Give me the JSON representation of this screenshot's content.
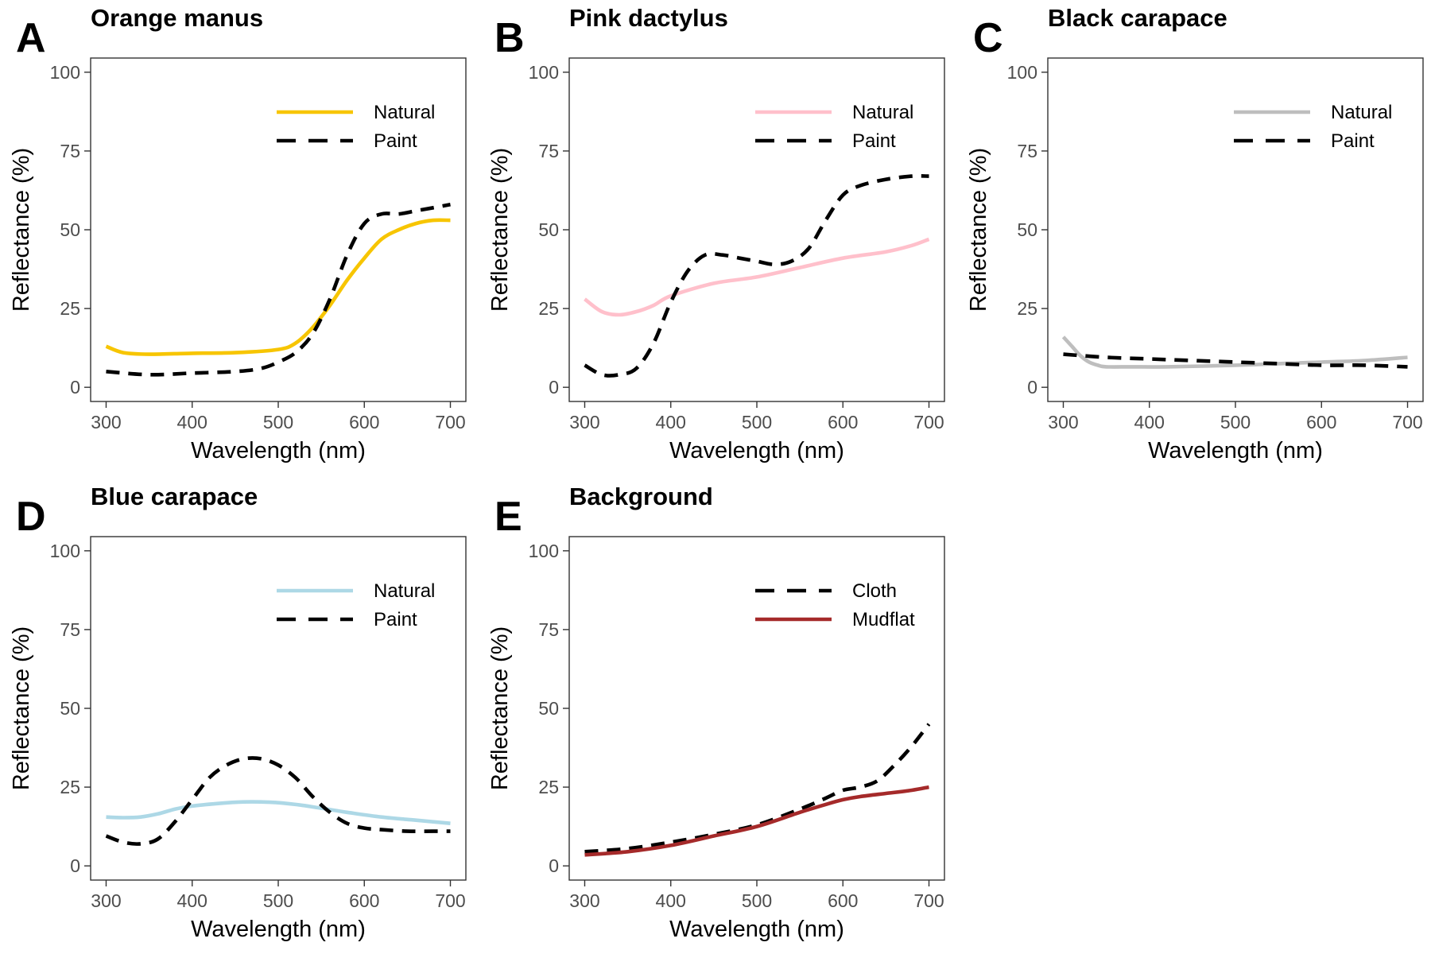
{
  "chart_data": [
    {
      "type": "line",
      "panel": "A",
      "title": "Orange manus",
      "xlabel": "Wavelength (nm)",
      "ylabel": "Reflectance (%)",
      "xlim": [
        300,
        700
      ],
      "ylim": [
        0,
        100
      ],
      "xticks": [
        300,
        400,
        500,
        600,
        700
      ],
      "yticks": [
        0,
        25,
        50,
        75,
        100
      ],
      "legend": "top-right",
      "grid": false,
      "series": [
        {
          "name": "Natural",
          "color": "#f7c500",
          "dash": "solid",
          "x": [
            300,
            320,
            350,
            400,
            450,
            500,
            520,
            540,
            560,
            580,
            600,
            620,
            640,
            660,
            680,
            700
          ],
          "y": [
            13,
            11,
            10.5,
            10.8,
            11,
            12,
            14,
            19,
            26,
            34,
            41,
            47,
            50,
            52,
            53,
            53
          ]
        },
        {
          "name": "Paint",
          "color": "#000000",
          "dash": "dashed",
          "x": [
            300,
            350,
            400,
            450,
            480,
            500,
            520,
            540,
            560,
            580,
            600,
            620,
            640,
            660,
            680,
            700
          ],
          "y": [
            5,
            4,
            4.5,
            5,
            6,
            8,
            11,
            17,
            28,
            42,
            52,
            55,
            55,
            56,
            57,
            58
          ]
        }
      ]
    },
    {
      "type": "line",
      "panel": "B",
      "title": "Pink dactylus",
      "xlabel": "Wavelength (nm)",
      "ylabel": "Reflectance (%)",
      "xlim": [
        300,
        700
      ],
      "ylim": [
        0,
        100
      ],
      "xticks": [
        300,
        400,
        500,
        600,
        700
      ],
      "yticks": [
        0,
        25,
        50,
        75,
        100
      ],
      "legend": "top-right",
      "grid": false,
      "series": [
        {
          "name": "Natural",
          "color": "#ffc0cb",
          "dash": "solid",
          "x": [
            300,
            320,
            340,
            360,
            380,
            400,
            450,
            500,
            550,
            600,
            650,
            680,
            700
          ],
          "y": [
            28,
            24,
            23,
            24,
            26,
            29,
            33,
            35,
            38,
            41,
            43,
            45,
            47
          ]
        },
        {
          "name": "Paint",
          "color": "#000000",
          "dash": "dashed",
          "x": [
            300,
            320,
            340,
            360,
            380,
            400,
            420,
            440,
            460,
            480,
            500,
            520,
            540,
            560,
            580,
            600,
            620,
            650,
            680,
            700
          ],
          "y": [
            7,
            4,
            4,
            6,
            14,
            27,
            37,
            42,
            42,
            41,
            40,
            39,
            40,
            44,
            53,
            61,
            64,
            66,
            67,
            67
          ]
        }
      ]
    },
    {
      "type": "line",
      "panel": "C",
      "title": "Black carapace",
      "xlabel": "Wavelength (nm)",
      "ylabel": "Reflectance (%)",
      "xlim": [
        300,
        700
      ],
      "ylim": [
        0,
        100
      ],
      "xticks": [
        300,
        400,
        500,
        600,
        700
      ],
      "yticks": [
        0,
        25,
        50,
        75,
        100
      ],
      "legend": "top-right",
      "grid": false,
      "series": [
        {
          "name": "Natural",
          "color": "#bebebe",
          "dash": "solid",
          "x": [
            300,
            310,
            320,
            330,
            340,
            350,
            380,
            420,
            500,
            550,
            600,
            650,
            700
          ],
          "y": [
            16,
            13,
            10,
            8,
            7,
            6.5,
            6.5,
            6.5,
            7,
            7.5,
            8,
            8.5,
            9.5
          ]
        },
        {
          "name": "Paint",
          "color": "#000000",
          "dash": "dashed",
          "x": [
            300,
            350,
            400,
            450,
            500,
            550,
            600,
            650,
            700
          ],
          "y": [
            10.5,
            9.5,
            9,
            8.5,
            8,
            7.5,
            7,
            7,
            6.5
          ]
        }
      ]
    },
    {
      "type": "line",
      "panel": "D",
      "title": "Blue carapace",
      "xlabel": "Wavelength (nm)",
      "ylabel": "Reflectance (%)",
      "xlim": [
        300,
        700
      ],
      "ylim": [
        0,
        100
      ],
      "xticks": [
        300,
        400,
        500,
        600,
        700
      ],
      "yticks": [
        0,
        25,
        50,
        75,
        100
      ],
      "legend": "top-right",
      "grid": false,
      "series": [
        {
          "name": "Natural",
          "color": "#add8e6",
          "dash": "solid",
          "x": [
            300,
            320,
            340,
            360,
            380,
            400,
            430,
            460,
            490,
            520,
            550,
            580,
            620,
            660,
            700
          ],
          "y": [
            15.5,
            15.3,
            15.5,
            16.5,
            18,
            19,
            19.8,
            20.3,
            20.2,
            19.5,
            18.3,
            17,
            15.5,
            14.5,
            13.5
          ]
        },
        {
          "name": "Paint",
          "color": "#000000",
          "dash": "dashed",
          "x": [
            300,
            320,
            340,
            360,
            380,
            400,
            420,
            440,
            460,
            480,
            500,
            520,
            540,
            560,
            580,
            600,
            620,
            650,
            680,
            700
          ],
          "y": [
            9.5,
            7.5,
            7,
            8.5,
            14,
            21,
            28,
            32,
            34,
            34,
            32,
            28,
            22,
            17,
            13.5,
            12,
            11.5,
            11,
            11,
            11
          ]
        }
      ]
    },
    {
      "type": "line",
      "panel": "E",
      "title": "Background",
      "xlabel": "Wavelength (nm)",
      "ylabel": "Reflectance (%)",
      "xlim": [
        300,
        700
      ],
      "ylim": [
        0,
        100
      ],
      "xticks": [
        300,
        400,
        500,
        600,
        700
      ],
      "yticks": [
        0,
        25,
        50,
        75,
        100
      ],
      "legend": "top-right",
      "grid": false,
      "series": [
        {
          "name": "Cloth",
          "color": "#000000",
          "dash": "dashed",
          "x": [
            300,
            350,
            400,
            450,
            500,
            550,
            580,
            600,
            620,
            640,
            660,
            680,
            700
          ],
          "y": [
            4.5,
            5.5,
            7.5,
            10,
            13,
            18,
            21.5,
            24,
            25,
            27,
            32,
            38,
            45
          ]
        },
        {
          "name": "Mudflat",
          "color": "#a52a2a",
          "dash": "solid",
          "x": [
            300,
            350,
            400,
            450,
            500,
            550,
            580,
            600,
            620,
            650,
            680,
            700
          ],
          "y": [
            3.5,
            4.5,
            6.5,
            9.5,
            12.5,
            17,
            19.5,
            21,
            22,
            23,
            24,
            25
          ]
        }
      ]
    }
  ]
}
